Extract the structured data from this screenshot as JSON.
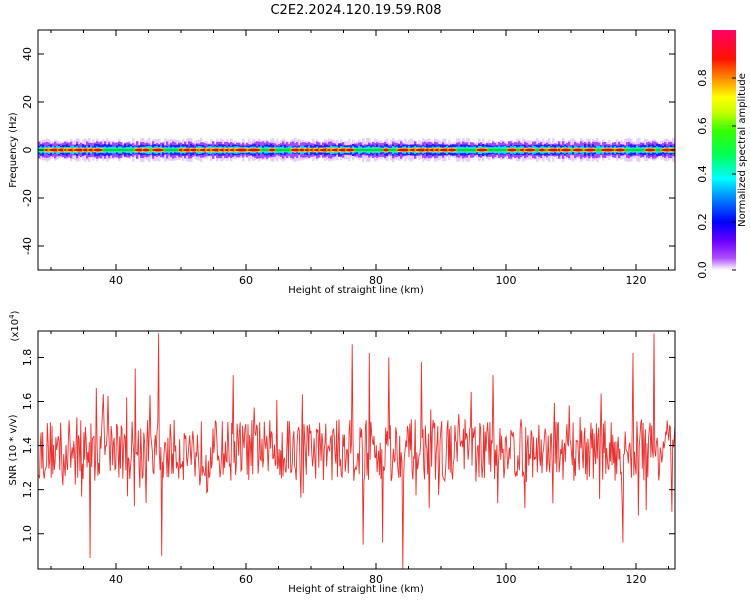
{
  "title": "C2E2.2024.120.19.59.R08",
  "chart_data": [
    {
      "type": "heatmap",
      "xlabel": "Height of straight line (km)",
      "ylabel": "Frequency (Hz)",
      "xlim": [
        28,
        126
      ],
      "ylim": [
        -50,
        50
      ],
      "xticks": [
        40,
        60,
        80,
        100,
        120
      ],
      "yticks": [
        -40,
        -20,
        0,
        20,
        40
      ],
      "ridge_center_hz": 0,
      "description_values": {
        "signal_band_hz": [
          -5,
          5
        ],
        "peak_segments_km": [
          [
            30,
            38
          ],
          [
            50,
            60
          ],
          [
            68,
            76
          ],
          [
            86,
            92
          ],
          [
            105,
            110
          ]
        ]
      },
      "colorbar": {
        "label": "Normalized spectral amplitude",
        "range": [
          0,
          1
        ],
        "ticks": [
          0.0,
          0.2,
          0.4,
          0.6,
          0.8
        ]
      }
    },
    {
      "type": "line",
      "xlabel": "Height of straight line (km)",
      "ylabel": "SNR (10 * v/v)",
      "scale_label": "(x10",
      "scale_exp": "4",
      "scale_close": ")",
      "xlim": [
        28,
        126
      ],
      "ylim": [
        0.84,
        1.92
      ],
      "xticks": [
        40,
        60,
        80,
        100,
        120
      ],
      "yticks": [
        1.0,
        1.2,
        1.4,
        1.6,
        1.8
      ],
      "series": [
        {
          "color": "#e8302e",
          "x_range": [
            28,
            126
          ],
          "n_points": 820,
          "mean": 1.38,
          "spikes": [
            [
              36,
              0.89
            ],
            [
              43,
              1.75
            ],
            [
              46.5,
              1.91
            ],
            [
              47,
              0.9
            ],
            [
              58,
              1.72
            ],
            [
              76.3,
              1.86
            ],
            [
              78,
              0.95
            ],
            [
              79,
              1.82
            ],
            [
              81,
              0.96
            ],
            [
              82,
              1.8
            ],
            [
              84.1,
              0.84
            ],
            [
              87,
              1.78
            ],
            [
              98,
              1.72
            ],
            [
              118,
              0.96
            ],
            [
              119.5,
              1.82
            ],
            [
              122.8,
              1.91
            ],
            [
              125.5,
              1.1
            ]
          ]
        }
      ]
    }
  ]
}
